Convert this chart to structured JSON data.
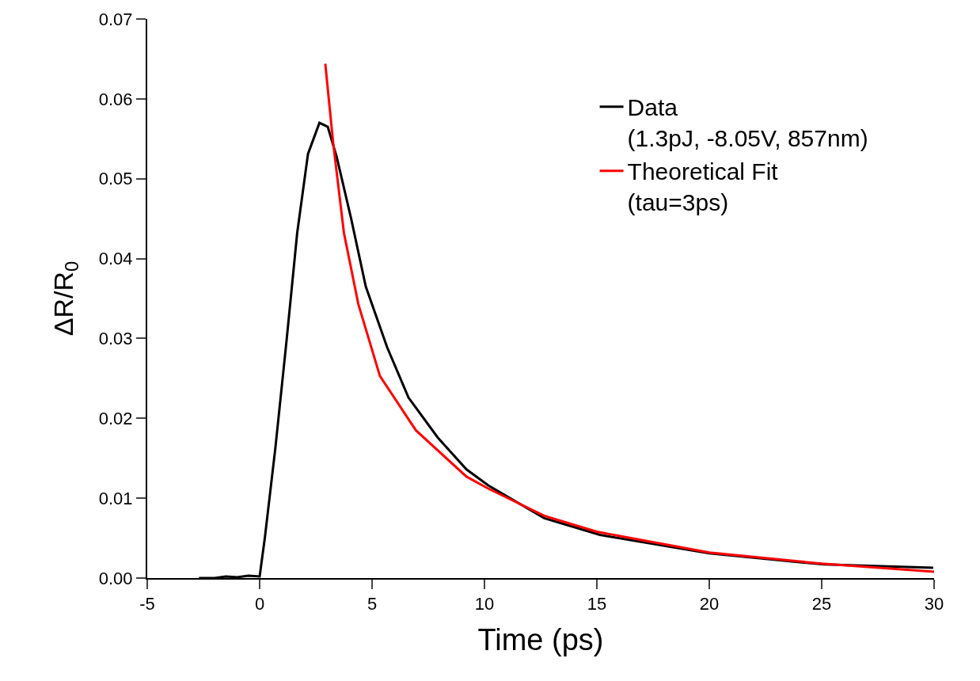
{
  "chart_data": {
    "type": "line",
    "xlabel": "Time (ps)",
    "ylabel": "ΔR/R$_{0}$",
    "xlim": [
      -5,
      30
    ],
    "xticks": [
      -5,
      0,
      5,
      10,
      15,
      20,
      25,
      30
    ],
    "ylim": [
      0,
      0.07
    ],
    "yticks": [
      {
        "value": 0,
        "label": "0.00"
      },
      {
        "value": 0.01,
        "label": "0.01"
      },
      {
        "value": 0.02,
        "label": "0.02"
      },
      {
        "value": 0.03,
        "label": "0.03"
      },
      {
        "value": 0.04,
        "label": "0.04"
      },
      {
        "value": 0.05,
        "label": "0.05"
      },
      {
        "value": 0.06,
        "label": "0.06"
      },
      {
        "value": 0.07,
        "label": "0.07"
      }
    ],
    "grid": false,
    "legend": "top right",
    "marker": "none",
    "line_style": "solid",
    "series": [
      {
        "name": "Data\n(1.3pJ, -8.05V, 857nm)",
        "color": "#000000",
        "x": [
          -2.7,
          -2,
          -1.5,
          -1,
          -0.5,
          0,
          0.23,
          0.7,
          1.2,
          1.67,
          2.15,
          2.66,
          3.03,
          3.43,
          4.07,
          4.72,
          5.67,
          6.62,
          7.92,
          9.2,
          10.17,
          12.66,
          15.14,
          20,
          25.1,
          29.96
        ],
        "values": [
          0,
          0,
          0.0002,
          0.0001,
          0.0003,
          0.0002,
          0.005,
          0.0163,
          0.0298,
          0.0432,
          0.0531,
          0.057,
          0.0565,
          0.0527,
          0.045,
          0.0365,
          0.0289,
          0.0226,
          0.0176,
          0.0136,
          0.0116,
          0.0075,
          0.0054,
          0.0031,
          0.0017,
          0.0013
        ]
      },
      {
        "name": "Theoretical Fit\n(tau=3ps)",
        "color": "#ff0000",
        "x": [
          2.92,
          3.27,
          3.75,
          4.39,
          5.35,
          6.95,
          9.2,
          10.17,
          12.66,
          15,
          20,
          25,
          30
        ],
        "values": [
          0.0644,
          0.0545,
          0.0432,
          0.0343,
          0.0253,
          0.0185,
          0.0127,
          0.0112,
          0.0078,
          0.0058,
          0.0032,
          0.0018,
          0.0008
        ]
      }
    ]
  }
}
